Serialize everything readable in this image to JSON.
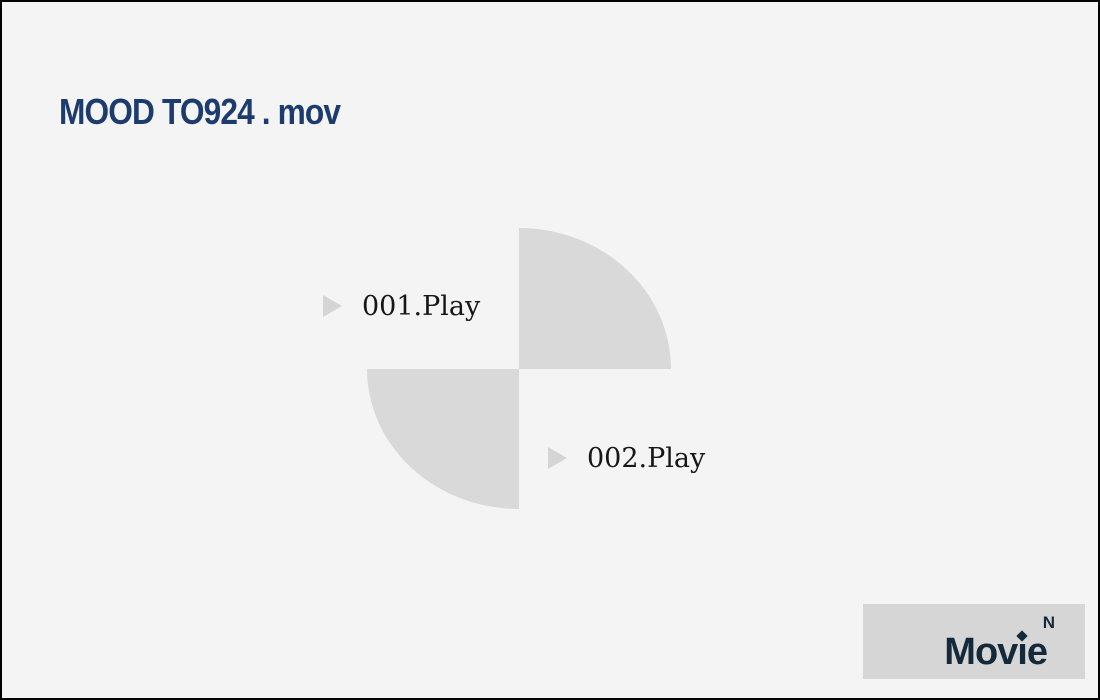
{
  "window": {
    "title": "MOOD TO924 . mov"
  },
  "players": [
    {
      "label": "001.Play"
    },
    {
      "label": "002.Play"
    }
  ],
  "brand": {
    "wordmark_before_i": "Mov",
    "wordmark_dotless_i": "ı",
    "wordmark_after_i": "e",
    "superscript": "N"
  },
  "colors": {
    "background": "#f4f4f4",
    "border": "#000000",
    "title_text": "#1d3c6e",
    "shape_gray": "#d9d9d9",
    "play_icon_gray": "#d5d5d5",
    "play_text": "#161616",
    "brand_box_bg": "#d6d6d6",
    "brand_text": "#14293a"
  }
}
